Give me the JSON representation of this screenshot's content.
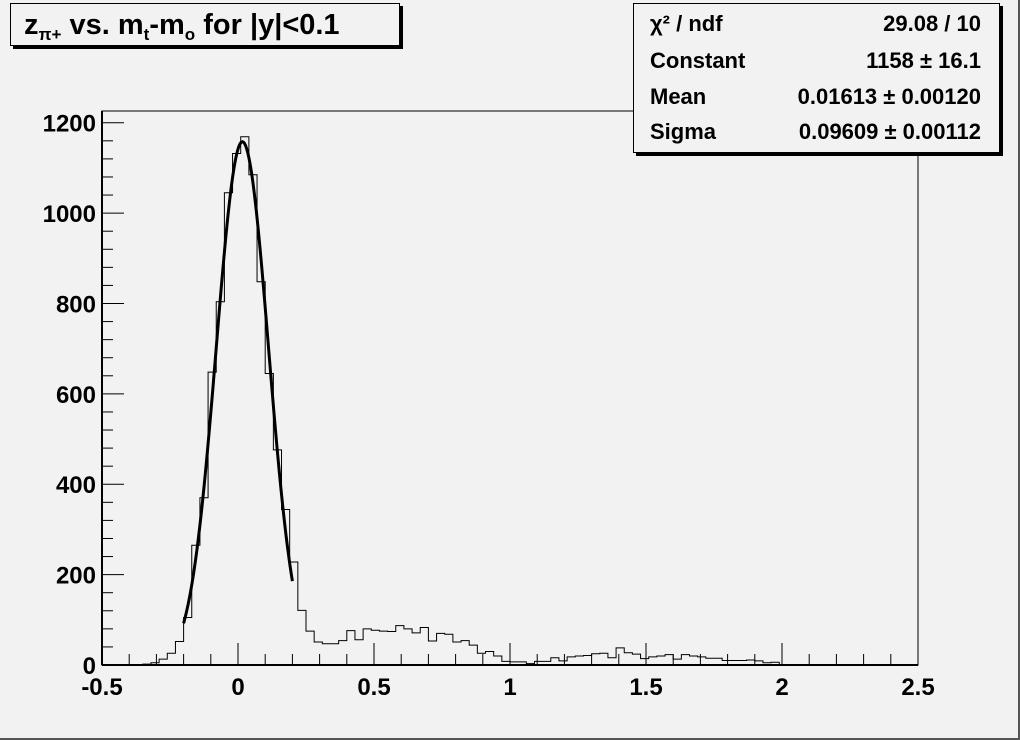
{
  "title": {
    "p1": "z",
    "p1sub": "π+",
    "p2": " vs. m",
    "p2sub": "t",
    "p3": "-m",
    "p3sub": "o",
    "p4": " for |y|<0.1"
  },
  "stats": [
    {
      "label": "χ² / ndf",
      "value": "29.08 / 10"
    },
    {
      "label": "Constant",
      "value": "1158 ± 16.1"
    },
    {
      "label": "Mean",
      "value": "0.01613 ± 0.00120"
    },
    {
      "label": "Sigma",
      "value": "0.09609 ± 0.00112"
    }
  ],
  "chart_data": {
    "type": "histogram",
    "title": "z_π+ vs. m_t-m_o for |y|<0.1",
    "xlabel": "",
    "ylabel": "",
    "xlim": [
      -0.5,
      2.5
    ],
    "ylim": [
      0,
      1226
    ],
    "bin_width": 0.03,
    "xticks": [
      "-0.5",
      "0",
      "0.5",
      "1",
      "1.5",
      "2",
      "2.5"
    ],
    "xtick_values": [
      -0.5,
      0,
      0.5,
      1,
      1.5,
      2,
      2.5
    ],
    "yticks": [
      "0",
      "200",
      "400",
      "600",
      "800",
      "1000",
      "1200"
    ],
    "ytick_values": [
      0,
      200,
      400,
      600,
      800,
      1000,
      1200
    ],
    "values": [
      0,
      0,
      0,
      0,
      0,
      2,
      5,
      13,
      26,
      52,
      105,
      265,
      370,
      648,
      804,
      1045,
      1132,
      1169,
      1085,
      848,
      645,
      476,
      344,
      228,
      121,
      75,
      51,
      47,
      47,
      54,
      76,
      56,
      80,
      77,
      75,
      74,
      87,
      80,
      71,
      83,
      53,
      70,
      68,
      51,
      54,
      44,
      26,
      30,
      20,
      8,
      7,
      7,
      3,
      8,
      8,
      16,
      9,
      18,
      20,
      21,
      25,
      26,
      16,
      38,
      27,
      24,
      14,
      18,
      20,
      23,
      13,
      23,
      20,
      18,
      15,
      15,
      10,
      10,
      10,
      11,
      9,
      5,
      6,
      0,
      0,
      0,
      0,
      0,
      0,
      0,
      0,
      0,
      0,
      0,
      0,
      0,
      0,
      0,
      0,
      0
    ],
    "fit": {
      "function": "gaus",
      "constant": 1158,
      "mean": 0.01613,
      "sigma": 0.09609,
      "range": [
        -0.2,
        0.2
      ]
    },
    "grid": false,
    "colors": {
      "histogram": "#000000",
      "fit": "#000000",
      "background": "#f2f2f2"
    }
  }
}
